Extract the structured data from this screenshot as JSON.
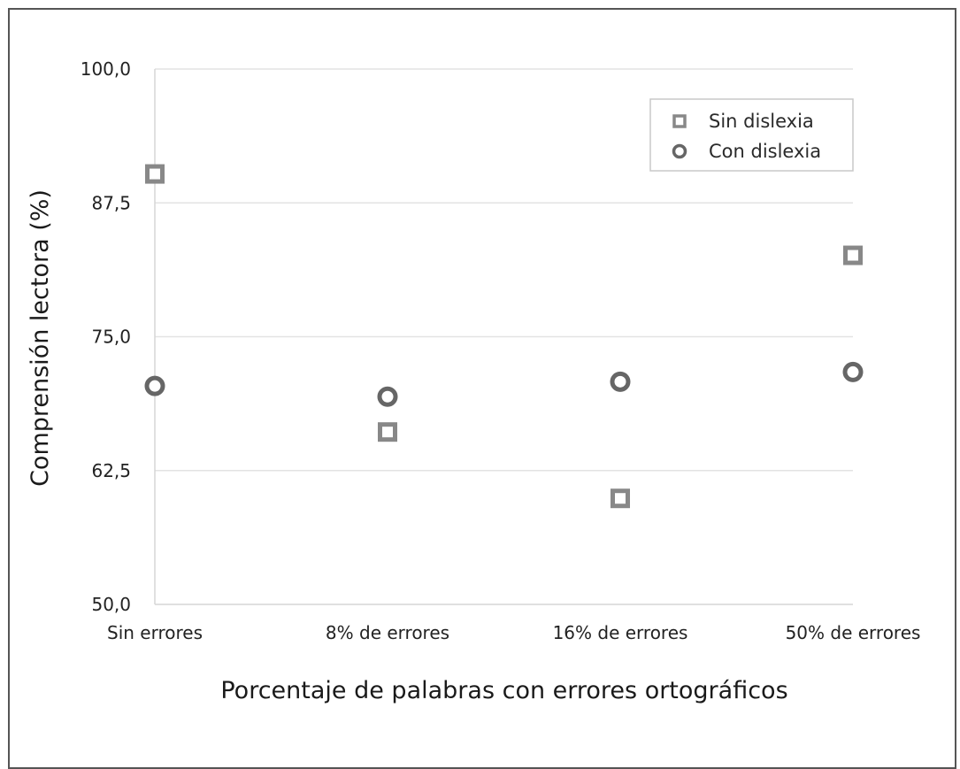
{
  "chart_data": {
    "type": "scatter",
    "title": "",
    "xlabel": "Porcentaje de palabras con errores ortográficos",
    "ylabel": "Comprensión lectora (%)",
    "categories": [
      "Sin errores",
      "8% de errores",
      "16% de errores",
      "50% de errores"
    ],
    "ylim": [
      50,
      100
    ],
    "yticks": [
      "50,0",
      "62,5",
      "75,0",
      "87,5",
      "100,0"
    ],
    "ytick_values": [
      50,
      62.5,
      75,
      87.5,
      100
    ],
    "grid": true,
    "legend_position": "top-right",
    "series": [
      {
        "name": "Sin dislexia",
        "marker": "square",
        "color": "#888888",
        "values": [
          90.2,
          66.1,
          59.9,
          82.6
        ]
      },
      {
        "name": "Con dislexia",
        "marker": "circle",
        "color": "#666666",
        "values": [
          70.4,
          69.4,
          70.8,
          71.7
        ]
      }
    ]
  }
}
